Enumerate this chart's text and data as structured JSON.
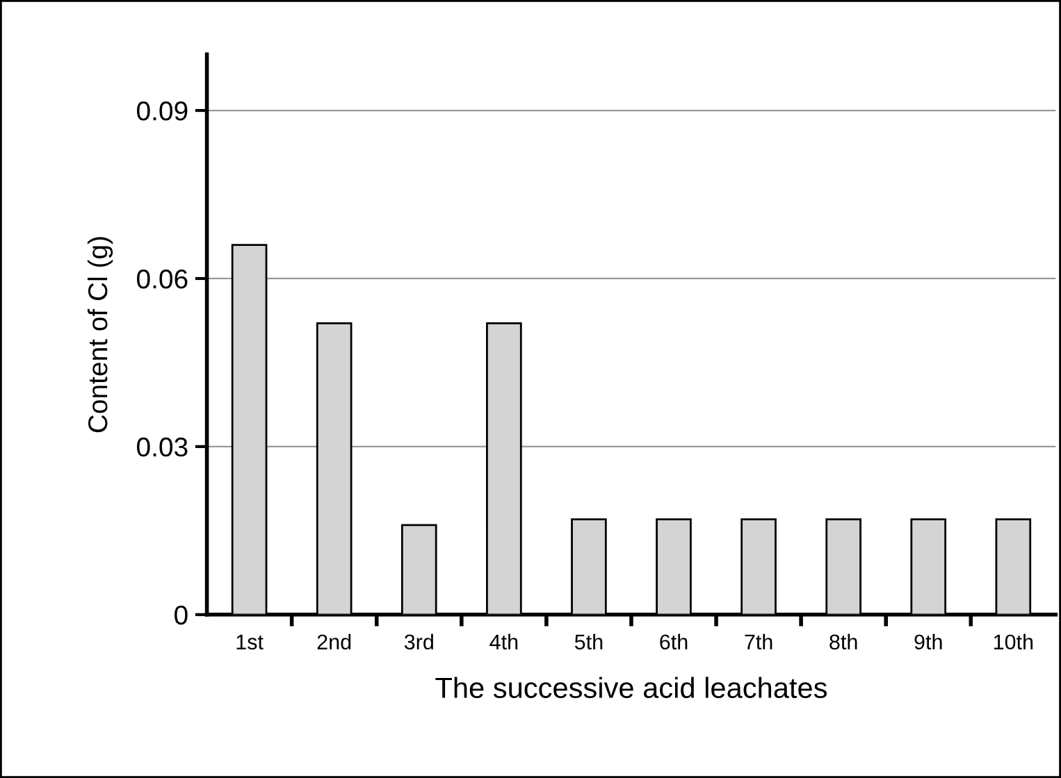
{
  "chart_data": {
    "type": "bar",
    "xlabel": "The successive acid leachates",
    "ylabel": "Content of Cl (g)",
    "categories": [
      "1st",
      "2nd",
      "3rd",
      "4th",
      "5th",
      "6th",
      "7th",
      "8th",
      "9th",
      "10th"
    ],
    "values": [
      0.066,
      0.052,
      0.016,
      0.052,
      0.017,
      0.017,
      0.017,
      0.017,
      0.017,
      0.017
    ],
    "color": "#d4d4d4",
    "ylim": [
      0,
      0.1
    ],
    "yticks": [
      0,
      0.03,
      0.06,
      0.09
    ],
    "grid": "y"
  }
}
